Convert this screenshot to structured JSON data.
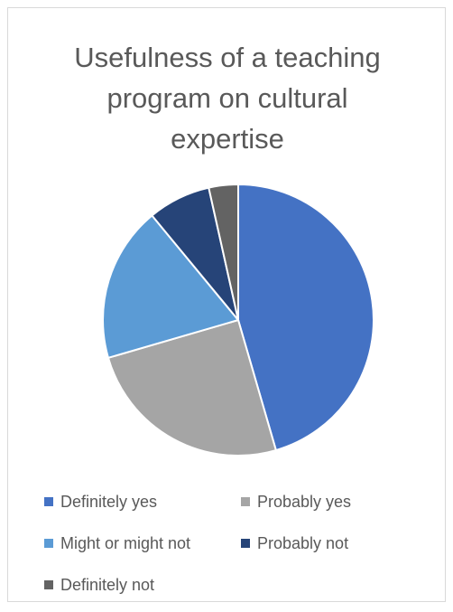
{
  "chart_data": {
    "type": "pie",
    "title": "Usefulness of a teaching program on cultural expertise",
    "title_lines": [
      "Usefulness of a teaching",
      "program on cultural",
      "expertise"
    ],
    "legend_position": "bottom",
    "categories": [
      "Definitely yes",
      "Probably yes",
      "Might or might not",
      "Probably not",
      "Definitely not"
    ],
    "values": [
      45.5,
      25.0,
      18.5,
      7.5,
      3.5
    ],
    "colors": [
      "#4472c4",
      "#a5a5a5",
      "#5b9bd5",
      "#264478",
      "#636363"
    ],
    "start_angle_deg": 0,
    "direction": "clockwise",
    "slice_border_color": "#ffffff"
  }
}
